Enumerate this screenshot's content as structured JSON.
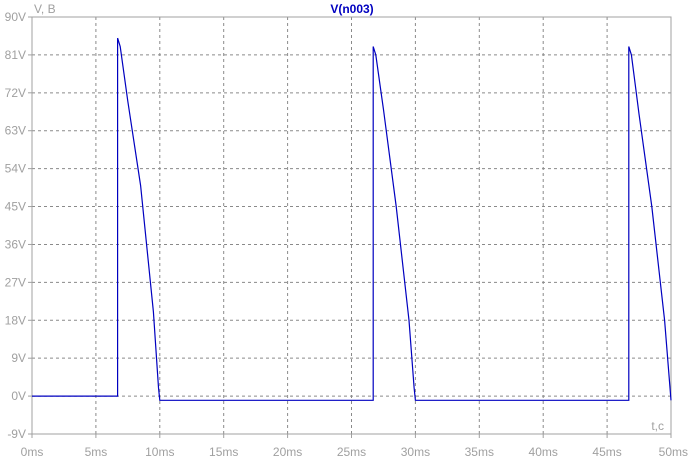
{
  "chart_data": {
    "type": "line",
    "title": "V(n003)",
    "ylabel": "V, B",
    "xlabel": "t,c",
    "xlim": [
      0,
      50
    ],
    "ylim": [
      -9,
      90
    ],
    "grid": true,
    "x_ticks": [
      0,
      5,
      10,
      15,
      20,
      25,
      30,
      35,
      40,
      45,
      50
    ],
    "x_tick_labels": [
      "0ms",
      "5ms",
      "10ms",
      "15ms",
      "20ms",
      "25ms",
      "30ms",
      "35ms",
      "40ms",
      "45ms",
      "50ms"
    ],
    "y_ticks": [
      -9,
      0,
      9,
      18,
      27,
      36,
      45,
      54,
      63,
      72,
      81,
      90
    ],
    "y_tick_labels": [
      "-9V",
      "0V",
      "9V",
      "18V",
      "27V",
      "36V",
      "45V",
      "54V",
      "63V",
      "72V",
      "81V",
      "90V"
    ],
    "series": [
      {
        "name": "V(n003)",
        "color": "#0000c0",
        "x": [
          0,
          6.7,
          6.7,
          6.9,
          7.5,
          8.5,
          9.5,
          9.9,
          10.0,
          26.7,
          26.7,
          26.9,
          27.5,
          28.5,
          29.5,
          29.9,
          30.0,
          46.7,
          46.7,
          46.9,
          47.5,
          48.5,
          49.5,
          50.0
        ],
        "y": [
          0,
          0,
          85,
          83,
          70,
          50,
          20,
          2,
          -1,
          -1,
          83,
          81,
          68,
          45,
          18,
          2,
          -1,
          -1,
          83,
          81,
          67,
          45,
          18,
          -1
        ]
      }
    ]
  },
  "colors": {
    "grid": "#8a8a8a",
    "frame": "#a0a0a0",
    "tick_text": "#a0a0a0",
    "trace": "#0000c0"
  }
}
